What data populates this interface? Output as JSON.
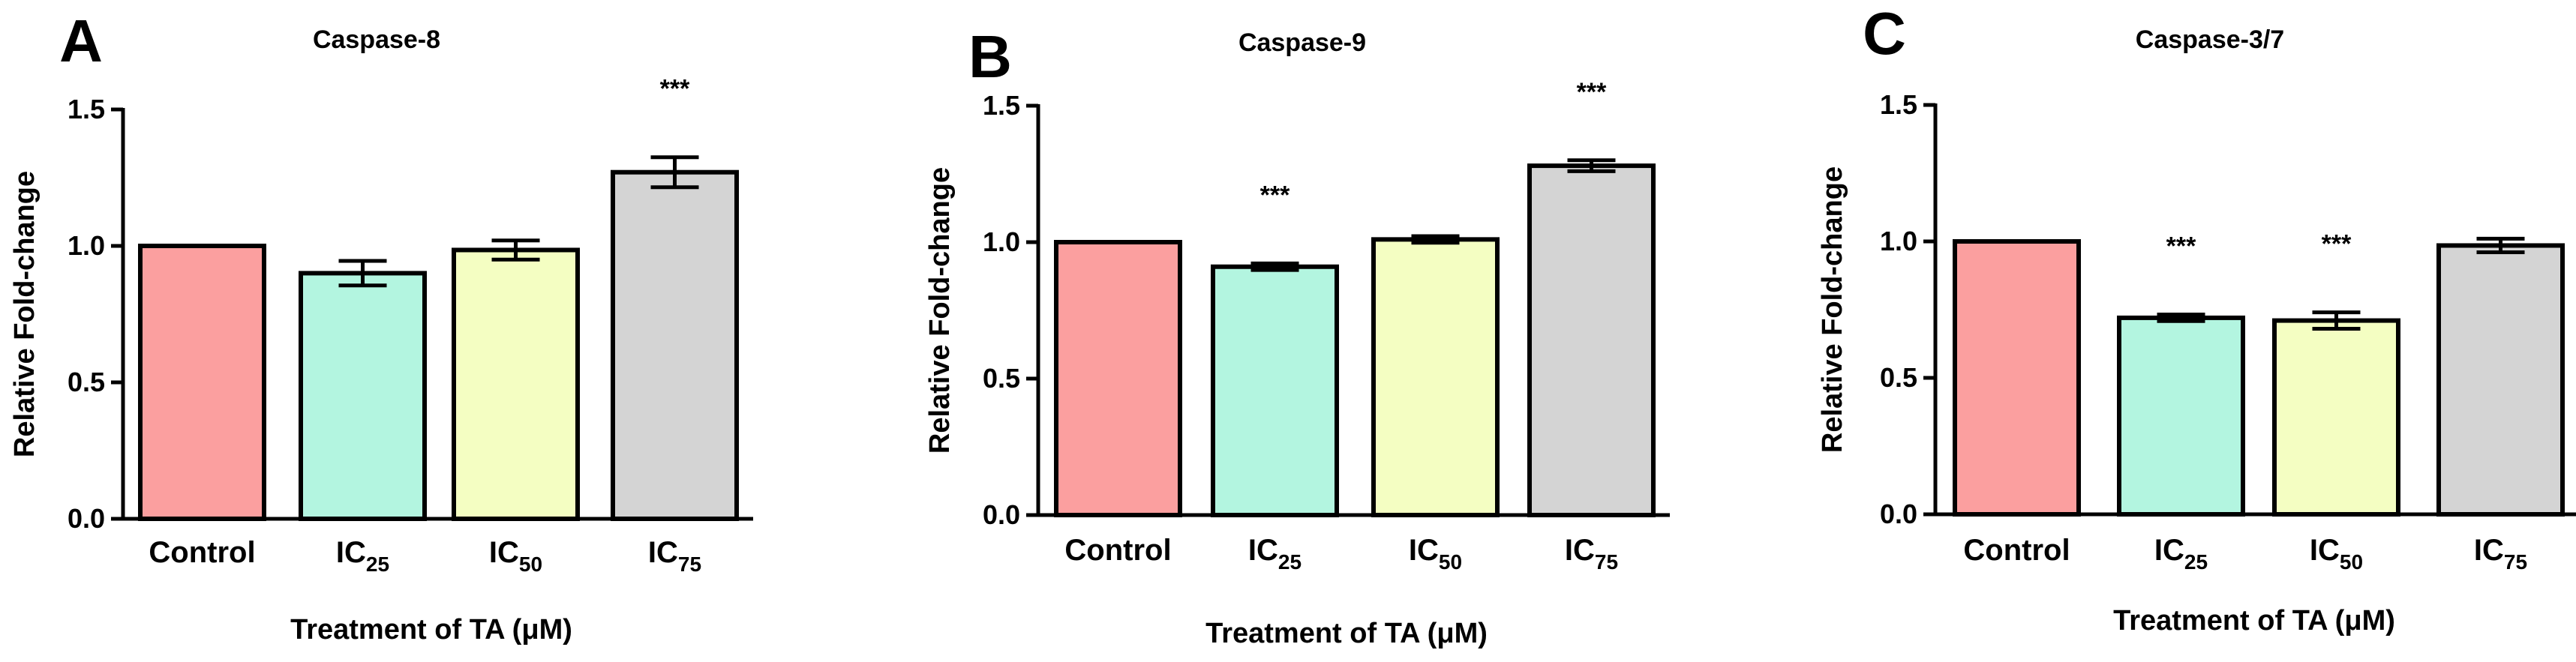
{
  "chart_data": [
    {
      "type": "bar",
      "panel": "A",
      "title": "Caspase-8",
      "xlabel": "Treatment of TA (μM)",
      "ylabel": "Relative Fold-change",
      "ylim": [
        0,
        1.5
      ],
      "yticks": [
        "0.0",
        "0.5",
        "1.0",
        "1.5"
      ],
      "categories": [
        {
          "main": "Control",
          "sub": ""
        },
        {
          "main": "IC",
          "sub": "25"
        },
        {
          "main": "IC",
          "sub": "50"
        },
        {
          "main": "IC",
          "sub": "75"
        }
      ],
      "values": [
        1.0,
        0.9,
        0.985,
        1.27
      ],
      "errors": [
        0,
        0.045,
        0.035,
        0.055
      ],
      "significance": [
        "",
        "",
        "",
        "***"
      ],
      "colors": [
        "#fb9f9f",
        "#b3f5e0",
        "#f4fec2",
        "#d4d4d4"
      ]
    },
    {
      "type": "bar",
      "panel": "B",
      "title": "Caspase-9",
      "xlabel": "Treatment of TA (μM)",
      "ylabel": "Relative Fold-change",
      "ylim": [
        0,
        1.5
      ],
      "yticks": [
        "0.0",
        "0.5",
        "1.0",
        "1.5"
      ],
      "categories": [
        {
          "main": "Control",
          "sub": ""
        },
        {
          "main": "IC",
          "sub": "25"
        },
        {
          "main": "IC",
          "sub": "50"
        },
        {
          "main": "IC",
          "sub": "75"
        }
      ],
      "values": [
        1.0,
        0.91,
        1.01,
        1.28
      ],
      "errors": [
        0,
        0.012,
        0.012,
        0.02
      ],
      "significance": [
        "",
        "***",
        "",
        "***"
      ],
      "colors": [
        "#fb9f9f",
        "#b3f5e0",
        "#f4fec2",
        "#d4d4d4"
      ]
    },
    {
      "type": "bar",
      "panel": "C",
      "title": "Caspase-3/7",
      "xlabel": "Treatment of TA (μM)",
      "ylabel": "Relative Fold-change",
      "ylim": [
        0,
        1.5
      ],
      "yticks": [
        "0.0",
        "0.5",
        "1.0",
        "1.5"
      ],
      "categories": [
        {
          "main": "Control",
          "sub": ""
        },
        {
          "main": "IC",
          "sub": "25"
        },
        {
          "main": "IC",
          "sub": "50"
        },
        {
          "main": "IC",
          "sub": "75"
        }
      ],
      "values": [
        1.0,
        0.72,
        0.71,
        0.985
      ],
      "errors": [
        0,
        0.012,
        0.03,
        0.025
      ],
      "significance": [
        "",
        "***",
        "***",
        ""
      ],
      "colors": [
        "#fb9f9f",
        "#b3f5e0",
        "#f4fec2",
        "#d4d4d4"
      ]
    }
  ]
}
